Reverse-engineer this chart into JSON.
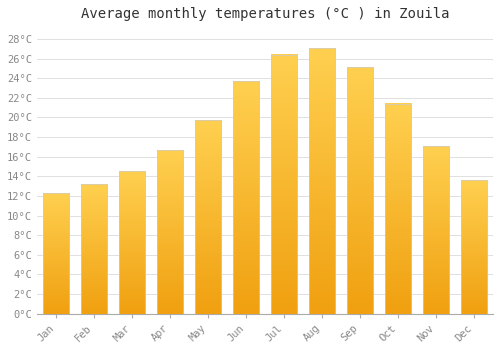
{
  "title": "Average monthly temperatures (°C ) in Zouila",
  "months": [
    "Jan",
    "Feb",
    "Mar",
    "Apr",
    "May",
    "Jun",
    "Jul",
    "Aug",
    "Sep",
    "Oct",
    "Nov",
    "Dec"
  ],
  "values": [
    12.3,
    13.2,
    14.5,
    16.7,
    19.7,
    23.7,
    26.4,
    27.1,
    25.1,
    21.4,
    17.1,
    13.6
  ],
  "bar_color_top": "#FFD050",
  "bar_color_bottom": "#F0A010",
  "bar_edge_color": "#DDDDDD",
  "background_color": "#FFFFFF",
  "plot_bg_color": "#FFFFFF",
  "grid_color": "#E0E0E0",
  "ylim": [
    0,
    29
  ],
  "ytick_step": 2,
  "title_fontsize": 10,
  "tick_fontsize": 7.5,
  "tick_color": "#888888",
  "title_color": "#333333",
  "bar_width": 0.7
}
